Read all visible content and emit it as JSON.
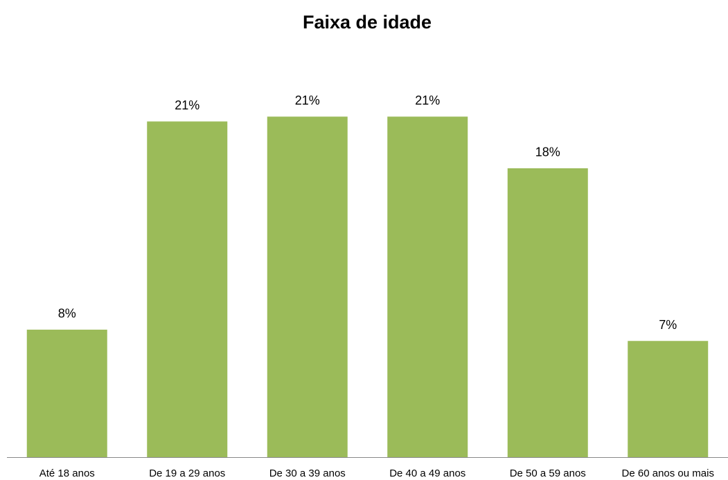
{
  "chart_data": {
    "type": "bar",
    "title": "Faixa de idade",
    "categories": [
      "Até 18 anos",
      "De 19 a 29 anos",
      "De 30 a 39 anos",
      "De 40 a 49 anos",
      "De 50 a 59 anos",
      "De 60 anos ou mais"
    ],
    "values": [
      7.9,
      20.8,
      21.1,
      21.1,
      17.9,
      7.2
    ],
    "value_labels": [
      "8%",
      "21%",
      "21%",
      "21%",
      "18%",
      "7%"
    ],
    "color": "#9bbb59"
  }
}
